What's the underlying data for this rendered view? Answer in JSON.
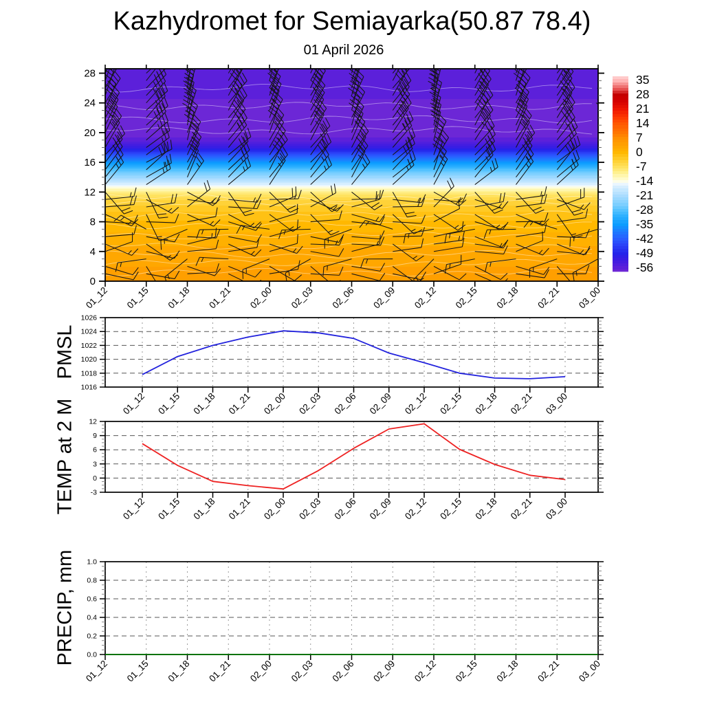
{
  "header": {
    "title": "Kazhydromet for Semiayarka(50.87 78.4)",
    "date": "01 April 2026"
  },
  "time_labels": [
    "01_12",
    "01_15",
    "01_18",
    "01_21",
    "02_00",
    "02_03",
    "02_06",
    "02_09",
    "02_12",
    "02_15",
    "02_18",
    "02_21",
    "03_00"
  ],
  "chart_data": [
    {
      "type": "heatmap",
      "name": "upper-air-temperature-wind-panel",
      "categories": [
        "01_12",
        "01_15",
        "01_18",
        "01_21",
        "02_00",
        "02_03",
        "02_06",
        "02_09",
        "02_12",
        "02_15",
        "02_18",
        "02_21",
        "03_00"
      ],
      "ylabel": "",
      "y_ticks": [
        0,
        4,
        8,
        12,
        16,
        20,
        24,
        28
      ],
      "y_range": [
        0,
        28.6
      ],
      "levels": [
        0,
        1,
        2,
        3,
        4,
        5,
        6,
        7,
        8,
        9,
        10,
        11,
        12,
        13,
        14,
        15,
        16,
        17,
        18,
        19,
        20,
        21,
        22,
        23,
        24,
        25,
        26,
        27,
        28
      ],
      "temperature_by_level": [
        5,
        4.5,
        3.5,
        3,
        2.5,
        2,
        1,
        0.5,
        -0.5,
        -1.5,
        -3,
        -5,
        -9,
        -16,
        -22,
        -28,
        -35,
        -43,
        -51,
        -56,
        -58,
        -58,
        -57.5,
        -57,
        -57,
        -56.5,
        -56.5,
        -56,
        -56
      ],
      "wind": {
        "levels": [
          1,
          2,
          3,
          4,
          5,
          6,
          7,
          8,
          9,
          10,
          11,
          12,
          13,
          14,
          15,
          16,
          17,
          18,
          19,
          20,
          21,
          22,
          23,
          24,
          25,
          26,
          27,
          28
        ],
        "barb_angle_deg": [
          96,
          118,
          252,
          84,
          102,
          92,
          268,
          88,
          124,
          72,
          98,
          135,
          42,
          38,
          35,
          40,
          38,
          35,
          30,
          28,
          26,
          28,
          25,
          27,
          24,
          26,
          23,
          25
        ],
        "speed_kt": [
          10,
          10,
          15,
          10,
          15,
          10,
          15,
          10,
          15,
          20,
          15,
          20,
          25,
          25,
          30,
          30,
          25,
          30,
          35,
          40,
          40,
          35,
          40,
          45,
          40,
          35,
          40,
          40
        ],
        "angle_jitter_by_time": [
          0,
          18,
          -12,
          8,
          -4,
          2,
          -6,
          10,
          -14,
          6,
          -2,
          8,
          -4
        ]
      },
      "colorbar": {
        "tick_labels": [
          35,
          28,
          21,
          14,
          7,
          0,
          -7,
          -14,
          -21,
          -28,
          -35,
          -42,
          -49,
          -56
        ],
        "value_range": [
          37,
          -58
        ],
        "stops": [
          [
            38,
            "#ffe0e0"
          ],
          [
            35,
            "#ffb6b6"
          ],
          [
            31,
            "#e85555"
          ],
          [
            28,
            "#c40000"
          ],
          [
            25,
            "#d40000"
          ],
          [
            21,
            "#ee1500"
          ],
          [
            17,
            "#fe3a00"
          ],
          [
            14,
            "#ff5800"
          ],
          [
            10,
            "#ff7400"
          ],
          [
            7,
            "#ff8f00"
          ],
          [
            3,
            "#ffa600"
          ],
          [
            0,
            "#ffb800"
          ],
          [
            -3,
            "#ffcb28"
          ],
          [
            -7,
            "#ffe25e"
          ],
          [
            -10,
            "#fff294"
          ],
          [
            -13,
            "#fffcd2"
          ],
          [
            -14,
            "#fdfde8"
          ],
          [
            -15,
            "#f0f8ff"
          ],
          [
            -17,
            "#d3edff"
          ],
          [
            -21,
            "#a9dcff"
          ],
          [
            -25,
            "#7fd0ff"
          ],
          [
            -28,
            "#54c2ff"
          ],
          [
            -31,
            "#2bb0ff"
          ],
          [
            -35,
            "#0c9cff"
          ],
          [
            -38,
            "#1b80ff"
          ],
          [
            -42,
            "#2a5cff"
          ],
          [
            -45,
            "#2b42f8"
          ],
          [
            -49,
            "#2424ea"
          ],
          [
            -52,
            "#3a1ce2"
          ],
          [
            -56,
            "#5c20da"
          ],
          [
            -59,
            "#7e2ed2"
          ],
          [
            -62,
            "#8c38e0"
          ]
        ]
      }
    },
    {
      "type": "line",
      "ylabel": "PMSL",
      "color": "#2222dd",
      "categories": [
        "01_12",
        "01_15",
        "01_18",
        "01_21",
        "02_00",
        "02_03",
        "02_06",
        "02_09",
        "02_12",
        "02_15",
        "02_18",
        "02_21",
        "03_00"
      ],
      "values": [
        1017.8,
        1020.4,
        1022.0,
        1023.2,
        1024.1,
        1023.8,
        1023.0,
        1020.9,
        1019.5,
        1018.0,
        1017.3,
        1017.2,
        1017.5
      ],
      "y_ticks": [
        1016,
        1018,
        1020,
        1022,
        1024,
        1026
      ],
      "y_tick_labels": [
        "1016",
        "1018",
        "1020",
        "1022",
        "1024",
        "1026"
      ],
      "y_range": [
        1016,
        1026
      ]
    },
    {
      "type": "line",
      "ylabel": "TEMP at 2 M",
      "color": "#ee2222",
      "categories": [
        "01_12",
        "01_15",
        "01_18",
        "01_21",
        "02_00",
        "02_03",
        "02_06",
        "02_09",
        "02_12",
        "02_15",
        "02_18",
        "02_21",
        "03_00"
      ],
      "values": [
        7.3,
        2.7,
        -0.7,
        -1.6,
        -2.3,
        1.6,
        6.3,
        10.4,
        11.5,
        6.1,
        2.9,
        0.6,
        -0.3
      ],
      "y_ticks": [
        -3,
        0,
        3,
        6,
        9,
        12
      ],
      "y_tick_labels": [
        "-3",
        "0",
        "3",
        "6",
        "9",
        "12"
      ],
      "y_range": [
        -3,
        12
      ]
    },
    {
      "type": "line",
      "ylabel": "PRECIP, mm",
      "color": "#007700",
      "categories": [
        "01_12",
        "01_15",
        "01_18",
        "01_21",
        "02_00",
        "02_03",
        "02_06",
        "02_09",
        "02_12",
        "02_15",
        "02_18",
        "02_21",
        "03_00"
      ],
      "values": [
        0,
        0,
        0,
        0,
        0,
        0,
        0,
        0,
        0,
        0,
        0,
        0,
        0
      ],
      "y_ticks": [
        0,
        0.2,
        0.4,
        0.6,
        0.8,
        1.0
      ],
      "y_tick_labels": [
        "0.0",
        "0.2",
        "0.4",
        "0.6",
        "0.8",
        "1.0"
      ],
      "y_range": [
        0,
        1
      ]
    }
  ]
}
